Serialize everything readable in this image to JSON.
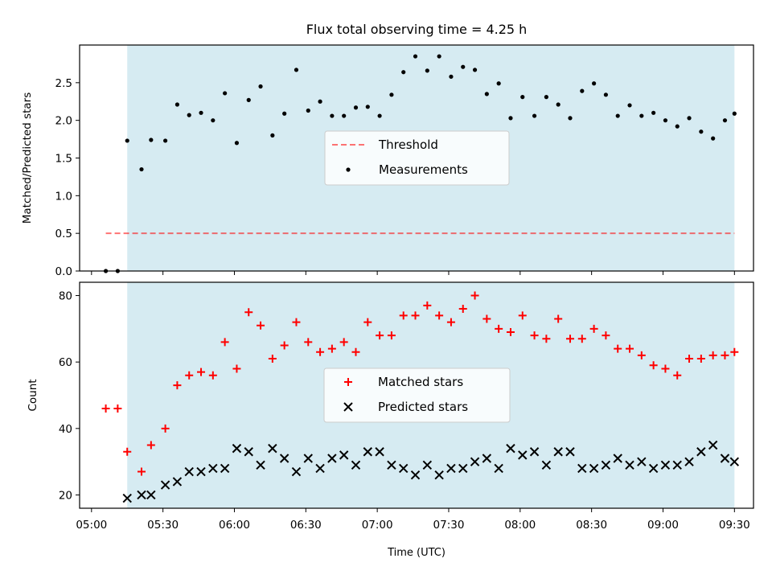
{
  "figure": {
    "title": "Flux total observing time = 4.25 h",
    "xlabel": "Time (UTC)"
  },
  "colors": {
    "shade": "#add8e6",
    "threshold": "#ff0000",
    "measurements": "#000000",
    "matched": "#ff0000",
    "predicted": "#000000"
  },
  "chart_data": [
    {
      "type": "scatter",
      "ylabel": "Matched/Predicted stars",
      "ylim": [
        0,
        3.0
      ],
      "xlim": [
        "04:55",
        "09:38"
      ],
      "yticks": [
        0.0,
        0.5,
        1.0,
        1.5,
        2.0,
        2.5
      ],
      "ytick_labels": [
        "0.0",
        "0.5",
        "1.0",
        "1.5",
        "2.0",
        "2.5"
      ],
      "shaded_span": [
        "05:15",
        "09:30"
      ],
      "legend_position": "center",
      "threshold": {
        "name": "Threshold",
        "value": 0.5,
        "x_range": [
          "05:06",
          "09:30"
        ],
        "style": "dashed"
      },
      "series": [
        {
          "name": "Measurements",
          "x": [
            "05:06",
            "05:11",
            "05:15",
            "05:21",
            "05:25",
            "05:31",
            "05:36",
            "05:41",
            "05:46",
            "05:51",
            "05:56",
            "06:01",
            "06:06",
            "06:11",
            "06:16",
            "06:21",
            "06:26",
            "06:31",
            "06:36",
            "06:41",
            "06:46",
            "06:51",
            "06:56",
            "07:01",
            "07:06",
            "07:11",
            "07:16",
            "07:21",
            "07:26",
            "07:31",
            "07:36",
            "07:41",
            "07:46",
            "07:51",
            "07:56",
            "08:01",
            "08:06",
            "08:11",
            "08:16",
            "08:21",
            "08:26",
            "08:31",
            "08:36",
            "08:41",
            "08:46",
            "08:51",
            "08:56",
            "09:01",
            "09:06",
            "09:11",
            "09:16",
            "09:21",
            "09:26",
            "09:30"
          ],
          "y": [
            0.0,
            0.0,
            1.73,
            1.35,
            1.74,
            1.73,
            2.21,
            2.07,
            2.1,
            2.0,
            2.36,
            1.7,
            2.27,
            2.45,
            1.8,
            2.09,
            2.67,
            2.13,
            2.25,
            2.06,
            2.06,
            2.17,
            2.18,
            2.06,
            2.34,
            2.64,
            2.85,
            2.66,
            2.85,
            2.58,
            2.71,
            2.67,
            2.35,
            2.49,
            2.03,
            2.31,
            2.06,
            2.31,
            2.21,
            2.03,
            2.39,
            2.49,
            2.34,
            2.06,
            2.2,
            2.06,
            2.1,
            2.0,
            1.92,
            2.03,
            1.85,
            1.76,
            2.0,
            2.09
          ]
        }
      ]
    },
    {
      "type": "scatter",
      "ylabel": "Count",
      "ylim": [
        16,
        84
      ],
      "xlim": [
        "04:55",
        "09:38"
      ],
      "yticks": [
        20,
        40,
        60,
        80
      ],
      "ytick_labels": [
        "20",
        "40",
        "60",
        "80"
      ],
      "xticks": [
        "05:00",
        "05:30",
        "06:00",
        "06:30",
        "07:00",
        "07:30",
        "08:00",
        "08:30",
        "09:00",
        "09:30"
      ],
      "shaded_span": [
        "05:15",
        "09:30"
      ],
      "legend_position": "center",
      "series": [
        {
          "name": "Matched stars",
          "marker": "+",
          "x": [
            "05:06",
            "05:11",
            "05:15",
            "05:21",
            "05:25",
            "05:31",
            "05:36",
            "05:41",
            "05:46",
            "05:51",
            "05:56",
            "06:01",
            "06:06",
            "06:11",
            "06:16",
            "06:21",
            "06:26",
            "06:31",
            "06:36",
            "06:41",
            "06:46",
            "06:51",
            "06:56",
            "07:01",
            "07:06",
            "07:11",
            "07:16",
            "07:21",
            "07:26",
            "07:31",
            "07:36",
            "07:41",
            "07:46",
            "07:51",
            "07:56",
            "08:01",
            "08:06",
            "08:11",
            "08:16",
            "08:21",
            "08:26",
            "08:31",
            "08:36",
            "08:41",
            "08:46",
            "08:51",
            "08:56",
            "09:01",
            "09:06",
            "09:11",
            "09:16",
            "09:21",
            "09:26",
            "09:30"
          ],
          "y": [
            46,
            46,
            33,
            27,
            35,
            40,
            53,
            56,
            57,
            56,
            66,
            58,
            75,
            71,
            61,
            65,
            72,
            66,
            63,
            64,
            66,
            63,
            72,
            68,
            68,
            74,
            74,
            77,
            74,
            72,
            76,
            80,
            73,
            70,
            69,
            74,
            68,
            67,
            73,
            67,
            67,
            70,
            68,
            64,
            64,
            62,
            59,
            58,
            56,
            61,
            61,
            62,
            62,
            63
          ]
        },
        {
          "name": "Predicted stars",
          "marker": "x",
          "x": [
            "05:15",
            "05:21",
            "05:25",
            "05:31",
            "05:36",
            "05:41",
            "05:46",
            "05:51",
            "05:56",
            "06:01",
            "06:06",
            "06:11",
            "06:16",
            "06:21",
            "06:26",
            "06:31",
            "06:36",
            "06:41",
            "06:46",
            "06:51",
            "06:56",
            "07:01",
            "07:06",
            "07:11",
            "07:16",
            "07:21",
            "07:26",
            "07:31",
            "07:36",
            "07:41",
            "07:46",
            "07:51",
            "07:56",
            "08:01",
            "08:06",
            "08:11",
            "08:16",
            "08:21",
            "08:26",
            "08:31",
            "08:36",
            "08:41",
            "08:46",
            "08:51",
            "08:56",
            "09:01",
            "09:06",
            "09:11",
            "09:16",
            "09:21",
            "09:26",
            "09:30"
          ],
          "y": [
            19,
            20,
            20,
            23,
            24,
            27,
            27,
            28,
            28,
            34,
            33,
            29,
            34,
            31,
            27,
            31,
            28,
            31,
            32,
            29,
            33,
            33,
            29,
            28,
            26,
            29,
            26,
            28,
            28,
            30,
            31,
            28,
            34,
            32,
            33,
            29,
            33,
            33,
            28,
            28,
            29,
            31,
            29,
            30,
            28,
            29,
            29,
            30,
            33,
            35,
            31,
            30
          ]
        }
      ]
    }
  ]
}
